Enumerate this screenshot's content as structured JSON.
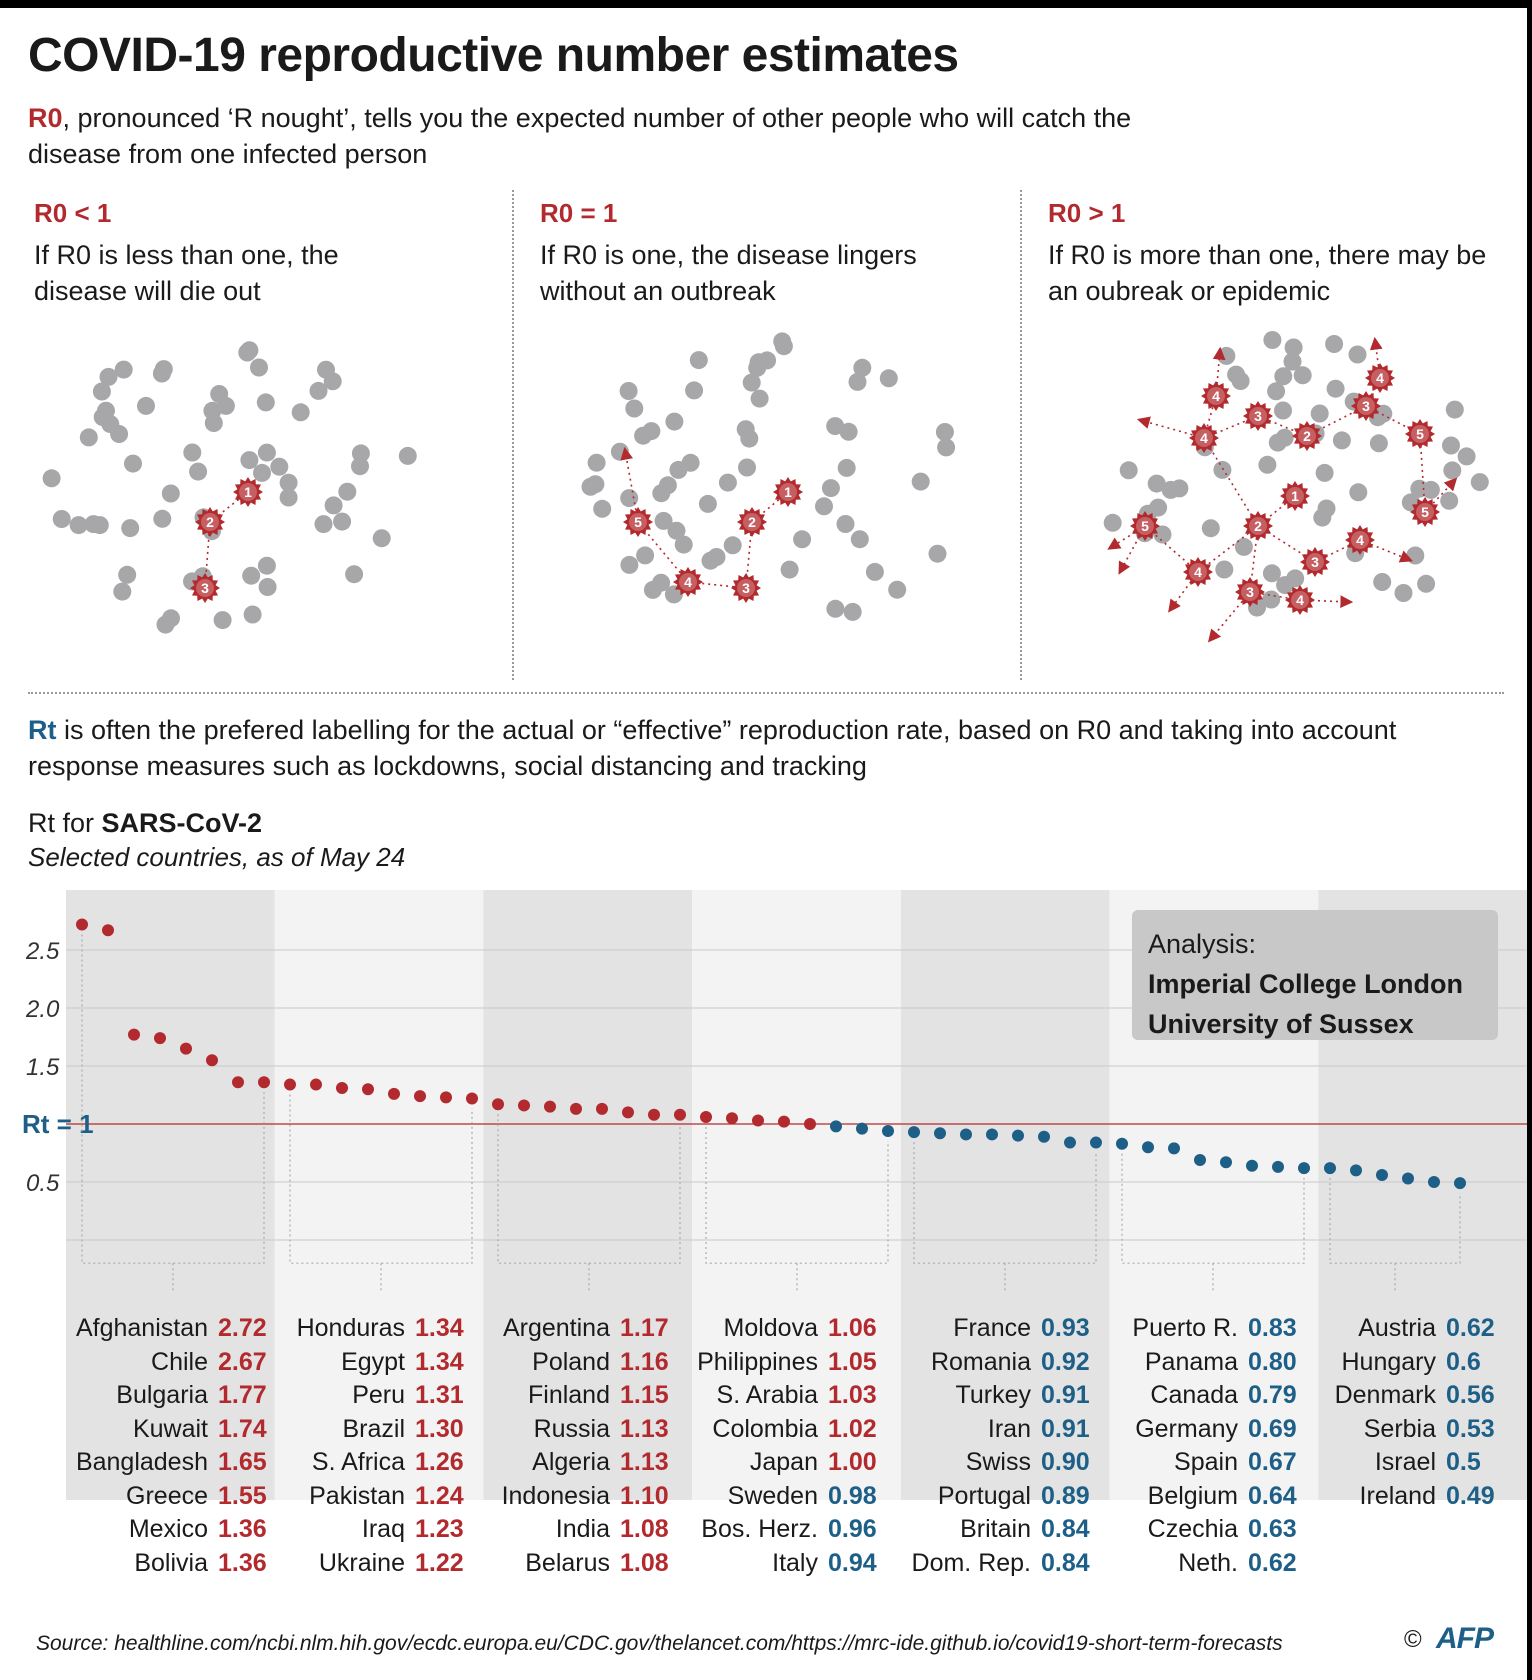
{
  "title": "COVID-19 reproductive number estimates",
  "intro": {
    "term": "R0",
    "text": ", pronounced ‘R nought’, tells you the expected number of other people who will catch the disease from one infected person"
  },
  "panels": [
    {
      "heading": "R0 < 1",
      "text": "If R0 is less than one, the disease will die out"
    },
    {
      "heading": "R0 = 1",
      "text": "If R0 is one, the disease lingers without an outbreak"
    },
    {
      "heading": "R0 > 1",
      "text": "If R0 is more than one, there may be an oubreak or epidemic"
    }
  ],
  "rt_intro": {
    "term": "Rt",
    "text": " is often the prefered labelling for the actual or “effective” reproduction rate, based on R0 and taking into account response measures such as lockdowns, social distancing and tracking"
  },
  "chart_title_prefix": "Rt for ",
  "chart_title_bold": "SARS-CoV-2",
  "chart_subtitle": "Selected countries, as of May 24",
  "analysis": {
    "label": "Analysis:",
    "line1": "Imperial College London",
    "line2": "University of Sussex"
  },
  "reference_label": "Rt = 1",
  "source": "Source: healthline.com/ncbi.nlm.hih.gov/ecdc.europa.eu/CDC.gov/thelancet.com/https://mrc-ide.github.io/covid19-short-term-forecasts",
  "copyright": "©",
  "agency": "AFP",
  "colors": {
    "above": "#b22a2e",
    "below": "#1d5f87",
    "dot_grey": "#a7a7a9"
  },
  "chart_data": {
    "type": "scatter",
    "title": "Rt for SARS-CoV-2",
    "subtitle": "Selected countries, as of May 24",
    "ylim": [
      0,
      2.8
    ],
    "yticks": [
      0.5,
      1.5,
      2.0,
      2.5
    ],
    "reference_line": 1,
    "groups": [
      [
        [
          "Afghanistan",
          "2.72"
        ],
        [
          "Chile",
          "2.67"
        ],
        [
          "Bulgaria",
          "1.77"
        ],
        [
          "Kuwait",
          "1.74"
        ],
        [
          "Bangladesh",
          "1.65"
        ],
        [
          "Greece",
          "1.55"
        ],
        [
          "Mexico",
          "1.36"
        ],
        [
          "Bolivia",
          "1.36"
        ]
      ],
      [
        [
          "Honduras",
          "1.34"
        ],
        [
          "Egypt",
          "1.34"
        ],
        [
          "Peru",
          "1.31"
        ],
        [
          "Brazil",
          "1.30"
        ],
        [
          "S. Africa",
          "1.26"
        ],
        [
          "Pakistan",
          "1.24"
        ],
        [
          "Iraq",
          "1.23"
        ],
        [
          "Ukraine",
          "1.22"
        ]
      ],
      [
        [
          "Argentina",
          "1.17"
        ],
        [
          "Poland",
          "1.16"
        ],
        [
          "Finland",
          "1.15"
        ],
        [
          "Russia",
          "1.13"
        ],
        [
          "Algeria",
          "1.13"
        ],
        [
          "Indonesia",
          "1.10"
        ],
        [
          "India",
          "1.08"
        ],
        [
          "Belarus",
          "1.08"
        ]
      ],
      [
        [
          "Moldova",
          "1.06"
        ],
        [
          "Philippines",
          "1.05"
        ],
        [
          "S. Arabia",
          "1.03"
        ],
        [
          "Colombia",
          "1.02"
        ],
        [
          "Japan",
          "1.00"
        ],
        [
          "Sweden",
          "0.98"
        ],
        [
          "Bos. Herz.",
          "0.96"
        ],
        [
          "Italy",
          "0.94"
        ]
      ],
      [
        [
          "France",
          "0.93"
        ],
        [
          "Romania",
          "0.92"
        ],
        [
          "Turkey",
          "0.91"
        ],
        [
          "Iran",
          "0.91"
        ],
        [
          "Swiss",
          "0.90"
        ],
        [
          "Portugal",
          "0.89"
        ],
        [
          "Britain",
          "0.84"
        ],
        [
          "Dom. Rep.",
          "0.84"
        ]
      ],
      [
        [
          "Puerto R.",
          "0.83"
        ],
        [
          "Panama",
          "0.80"
        ],
        [
          "Canada",
          "0.79"
        ],
        [
          "Germany",
          "0.69"
        ],
        [
          "Spain",
          "0.67"
        ],
        [
          "Belgium",
          "0.64"
        ],
        [
          "Czechia",
          "0.63"
        ],
        [
          "Neth.",
          "0.62"
        ]
      ],
      [
        [
          "Austria",
          "0.62"
        ],
        [
          "Hungary",
          "0.6"
        ],
        [
          "Denmark",
          "0.56"
        ],
        [
          "Serbia",
          "0.53"
        ],
        [
          "Israel",
          "0.5"
        ],
        [
          "Ireland",
          "0.49"
        ]
      ]
    ]
  }
}
